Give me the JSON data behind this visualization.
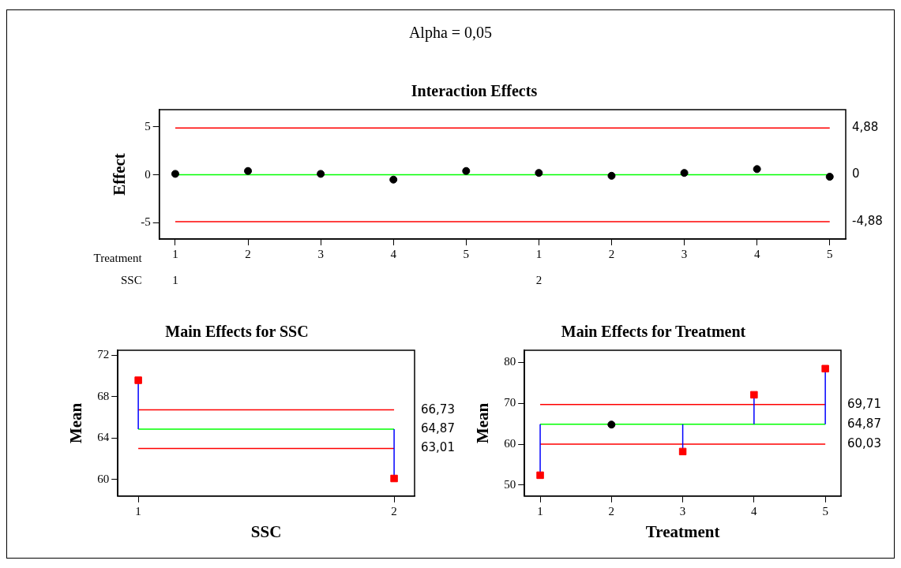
{
  "chart_data": [
    {
      "type": "lollipop",
      "subtitle": "Alpha = 0,05",
      "title": "Interaction Effects",
      "ylabel": "Effect",
      "xlabel": "Treatment",
      "annotations": [
        "SSC",
        "1",
        "2"
      ],
      "categories": [
        "1",
        "2",
        "3",
        "4",
        "5",
        "1",
        "2",
        "3",
        "4",
        "5"
      ],
      "series": [
        {
          "color": "#000000",
          "marker": "circle",
          "values": [
            0.1,
            0.4,
            0.1,
            -0.5,
            0.4,
            0.2,
            -0.1,
            0.2,
            0.6,
            -0.2
          ]
        }
      ],
      "ylim": [
        -6.7,
        6.8
      ],
      "yticks": [
        -5,
        0,
        5
      ],
      "ref_lines": [
        {
          "axis": "y",
          "value": 4.88,
          "label": "4,88",
          "color": "#ff0000"
        },
        {
          "axis": "y",
          "value": 0,
          "label": "0",
          "color": "#00ff00"
        },
        {
          "axis": "y",
          "value": -4.88,
          "label": "-4,88",
          "color": "#ff0000"
        }
      ]
    },
    {
      "type": "lollipop",
      "title": "Main Effects for SSC",
      "ylabel": "Mean",
      "xlabel": "SSC",
      "categories": [
        "1",
        "2"
      ],
      "series": [
        {
          "color": "#ff0000",
          "marker": "square",
          "values": [
            69.6,
            60.1
          ],
          "errors": [
            [
              64.87,
              69.6
            ],
            [
              60.1,
              64.87
            ]
          ]
        }
      ],
      "ylim": [
        58.4,
        72.5
      ],
      "yticks": [
        60,
        64,
        68,
        72
      ],
      "ref_lines": [
        {
          "axis": "y",
          "value": 66.73,
          "label": "66,73",
          "color": "#ff0000"
        },
        {
          "axis": "y",
          "value": 64.87,
          "label": "64,87",
          "color": "#00ff00"
        },
        {
          "axis": "y",
          "value": 63.01,
          "label": "63,01",
          "color": "#ff0000"
        }
      ]
    },
    {
      "type": "lollipop",
      "title": "Main Effects for Treatment",
      "ylabel": "Mean",
      "xlabel": "Treatment",
      "categories": [
        "1",
        "2",
        "3",
        "4",
        "5"
      ],
      "series": [
        {
          "color": "#ff0000",
          "marker": "square",
          "values": [
            52.4,
            null,
            58.2,
            72.1,
            78.5
          ],
          "errors": [
            [
              52.4,
              64.87
            ],
            null,
            [
              58.2,
              64.87
            ],
            [
              64.87,
              72.1
            ],
            [
              64.87,
              78.5
            ]
          ]
        },
        {
          "color": "#000000",
          "marker": "circle",
          "values": [
            null,
            64.8,
            null,
            null,
            null
          ]
        }
      ],
      "ylim": [
        47.3,
        83
      ],
      "yticks": [
        50,
        60,
        70,
        80
      ],
      "ref_lines": [
        {
          "axis": "y",
          "value": 69.71,
          "label": "69,71",
          "color": "#ff0000"
        },
        {
          "axis": "y",
          "value": 64.87,
          "label": "64,87",
          "color": "#00ff00"
        },
        {
          "axis": "y",
          "value": 60.03,
          "label": "60,03",
          "color": "#ff0000"
        }
      ]
    }
  ]
}
